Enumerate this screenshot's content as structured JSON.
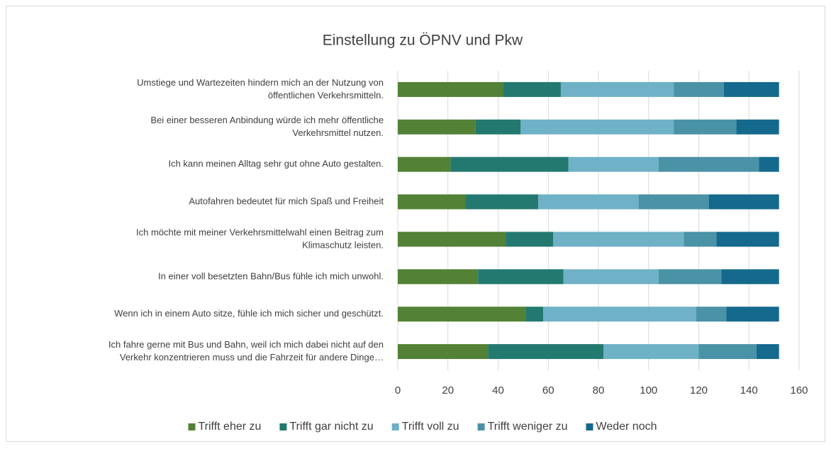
{
  "chart_data": {
    "type": "stacked-barh",
    "title": "Einstellung zu ÖPNV und Pkw",
    "categories": [
      [
        "Umstiege und Wartezeiten hindern mich an der Nutzung von",
        "öffentlichen Verkehrsmitteln."
      ],
      [
        "Bei einer besseren Anbindung würde ich mehr öffentliche",
        "Verkehrsmittel nutzen."
      ],
      [
        "Ich kann meinen Alltag sehr gut ohne Auto gestalten."
      ],
      [
        "Autofahren bedeutet für mich Spaß und Freiheit"
      ],
      [
        "Ich möchte mit meiner Verkehrsmittelwahl einen Beitrag zum",
        "Klimaschutz leisten."
      ],
      [
        "In einer voll besetzten Bahn/Bus fühle ich mich unwohl."
      ],
      [
        "Wenn ich in einem Auto sitze, fühle ich mich sicher und geschützt."
      ],
      [
        "Ich fahre gerne mit Bus und Bahn, weil ich mich dabei nicht auf den",
        "Verkehr konzentrieren muss und die Fahrzeit für andere Dinge…"
      ]
    ],
    "series": [
      {
        "name": "Trifft eher zu",
        "color": "#538135",
        "values": [
          42,
          31,
          21,
          27,
          43,
          32,
          51,
          36
        ]
      },
      {
        "name": "Trifft gar nicht zu",
        "color": "#23796f",
        "values": [
          23,
          18,
          47,
          29,
          19,
          34,
          7,
          46
        ]
      },
      {
        "name": "Trifft voll zu",
        "color": "#6fb1c6",
        "values": [
          45,
          61,
          36,
          40,
          52,
          38,
          61,
          38
        ]
      },
      {
        "name": "Trifft weniger zu",
        "color": "#4a92a6",
        "values": [
          20,
          25,
          40,
          28,
          13,
          25,
          12,
          23
        ]
      },
      {
        "name": "Weder noch",
        "color": "#14698d",
        "values": [
          22,
          17,
          8,
          28,
          25,
          23,
          21,
          9
        ]
      }
    ],
    "xlim": [
      0,
      160
    ],
    "xticks": [
      0,
      20,
      40,
      60,
      80,
      100,
      120,
      140,
      160
    ],
    "grid": true,
    "legend": "bottom"
  }
}
